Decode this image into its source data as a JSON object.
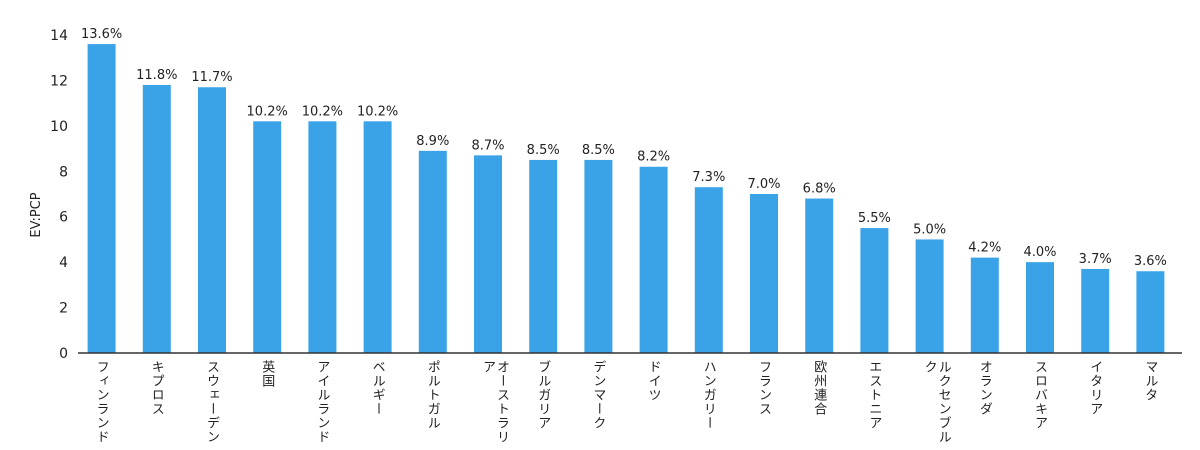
{
  "chart_data": {
    "type": "bar",
    "title": "",
    "xlabel": "",
    "ylabel": "EV:PCP",
    "ylim": [
      0,
      14
    ],
    "yticks": [
      "0",
      "2",
      "4",
      "6",
      "8",
      "10",
      "12",
      "14"
    ],
    "grid": false,
    "bar_color": "#3aa3e8",
    "categories": [
      "フィンランド",
      "キプロス",
      "スウェーデン",
      "英国",
      "アイルランド",
      "ベルギー",
      "ポルトガル",
      "オーストラリア",
      "ブルガリア",
      "デンマーク",
      "ドイツ",
      "ハンガリー",
      "フランス",
      "欧州連合",
      "エストニア",
      "ルクセンブルク",
      "オランダ",
      "スロバキア",
      "イタリア",
      "マルタ"
    ],
    "values": [
      13.6,
      11.8,
      11.7,
      10.2,
      10.2,
      10.2,
      8.9,
      8.7,
      8.5,
      8.5,
      8.2,
      7.3,
      7.0,
      6.8,
      5.5,
      5.0,
      4.2,
      4.0,
      3.7,
      3.6
    ],
    "data_labels": [
      "13.6%",
      "11.8%",
      "11.7%",
      "10.2%",
      "10.2%",
      "10.2%",
      "8.9%",
      "8.7%",
      "8.5%",
      "8.5%",
      "8.2%",
      "7.3%",
      "7.0%",
      "6.8%",
      "5.5%",
      "5.0%",
      "4.2%",
      "4.0%",
      "3.7%",
      "3.6%"
    ]
  }
}
